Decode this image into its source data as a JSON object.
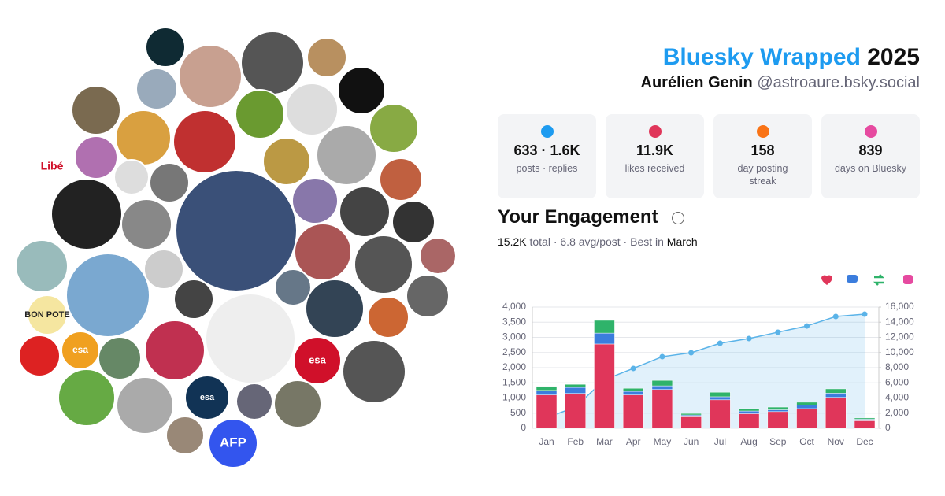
{
  "header": {
    "brand": "Bluesky Wrapped",
    "year": "2025",
    "name": "Aurélien Genin",
    "handle": "@astroaure.bsky.social"
  },
  "avatars": {
    "logos": [
      "Libé",
      "BON POTE",
      "esa",
      "esa",
      "esa",
      "AFP"
    ]
  },
  "stats": [
    {
      "value": "633 · 1.6K",
      "label": "posts · replies"
    },
    {
      "value": "11.9K",
      "label": "likes received"
    },
    {
      "value": "158",
      "label": "day posting streak"
    },
    {
      "value": "839",
      "label": "days on Bluesky"
    }
  ],
  "engagement": {
    "title": "Your Engagement",
    "total": "15.2K",
    "summary": "total · 6.8 avg/post · Best in",
    "best": "March"
  },
  "chart_data": {
    "type": "bar",
    "stacked": true,
    "categories": [
      "Jan",
      "Feb",
      "Mar",
      "Apr",
      "May",
      "Jun",
      "Jul",
      "Aug",
      "Sep",
      "Oct",
      "Nov",
      "Dec"
    ],
    "series": [
      {
        "name": "Likes",
        "color": "#e0365a",
        "values": [
          1100,
          1150,
          2780,
          1100,
          1280,
          380,
          940,
          480,
          550,
          650,
          1020,
          250
        ]
      },
      {
        "name": "Replies",
        "color": "#3b7ddd",
        "values": [
          150,
          200,
          360,
          120,
          120,
          60,
          100,
          90,
          60,
          110,
          140,
          50
        ]
      },
      {
        "name": "Reposts",
        "color": "#2fb36a",
        "values": [
          130,
          100,
          420,
          100,
          180,
          50,
          150,
          80,
          90,
          100,
          140,
          40
        ]
      },
      {
        "name": "Cumulative",
        "type": "area",
        "axis": "y2",
        "color": "#5ab3e8",
        "values": [
          1400,
          2800,
          6400,
          7900,
          9450,
          9970,
          11220,
          11840,
          12680,
          13500,
          14750,
          15060
        ]
      }
    ],
    "ylim": [
      0,
      4000
    ],
    "yticks": [
      0,
      500,
      {
        "value": 1000,
        "label": "1,000"
      },
      {
        "value": 1500,
        "label": "1,500"
      },
      {
        "value": 2000,
        "label": "2,000"
      },
      {
        "value": 2500,
        "label": "2,500"
      },
      {
        "value": 3000,
        "label": "3,000"
      },
      {
        "value": 3500,
        "label": "3,500"
      },
      {
        "value": 4000,
        "label": "4,000"
      }
    ],
    "y2lim": [
      0,
      16000
    ],
    "y2ticks": [
      0,
      {
        "value": 2000,
        "label": "2,000"
      },
      {
        "value": 4000,
        "label": "4,000"
      },
      {
        "value": 6000,
        "label": "6,000"
      },
      {
        "value": 8000,
        "label": "8,000"
      },
      {
        "value": 10000,
        "label": "10,000"
      },
      {
        "value": 12000,
        "label": "12,000"
      },
      {
        "value": 14000,
        "label": "14,000"
      },
      {
        "value": 16000,
        "label": "16,000"
      }
    ],
    "grid": true
  }
}
